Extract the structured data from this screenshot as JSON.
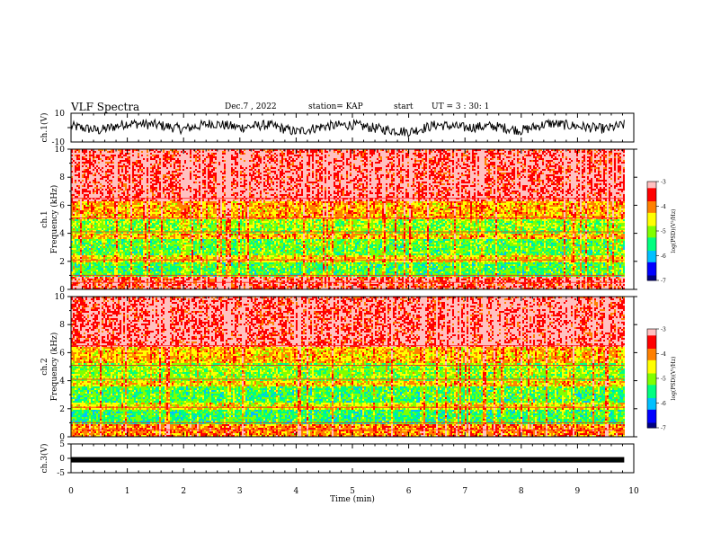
{
  "header": {
    "title": "VLF Spectra",
    "date": "Dec.7 , 2022",
    "station": "station= KAP",
    "start_label": "start",
    "start_ut": "UT =  3 : 30: 1"
  },
  "chart_data": [
    {
      "type": "line",
      "panel": "ch1-waveform",
      "ylabel": "ch.1(V)",
      "ylim": [
        -10,
        10
      ],
      "yticks": [
        "10",
        "-10"
      ],
      "xlim": [
        0,
        10
      ],
      "color": "#000000",
      "description_values": {
        "x": [
          0,
          0.5,
          1.0,
          1.5,
          2.0,
          2.5,
          3.0,
          3.5,
          4.0,
          4.5,
          5.0,
          5.5,
          6.0,
          6.5,
          7.0,
          7.5,
          8.0,
          8.5,
          9.0,
          9.5,
          9.83
        ],
        "y": [
          1,
          -2,
          3,
          2,
          -1,
          3,
          0,
          2,
          -3,
          1,
          2,
          -1,
          -3,
          2,
          0,
          1,
          -2,
          3,
          1,
          -1,
          2
        ]
      }
    },
    {
      "type": "heatmap",
      "panel": "ch1-spectrogram",
      "ylabel": "ch.1 Frequency (kHz)",
      "ylim": [
        0,
        10
      ],
      "yticks": [
        "0",
        "2",
        "4",
        "6",
        "8",
        "10"
      ],
      "xlim": [
        0,
        10
      ],
      "time_extent_min": 9.83,
      "dominant_levels": {
        "0-1 kHz": -3.5,
        "1-2 kHz": -5.3,
        "2-2.5 kHz": -4.5,
        "2.5-3.7 kHz": -5.2,
        "3.7-4.1 kHz": -4.3,
        "4.1-5.1 kHz": -5.0,
        "5.1-6.3 kHz": -4.2,
        "6.3-10 kHz": -3.3
      },
      "colorbar": {
        "label": "log(PSD)(V²/Hz)",
        "range": [
          -7,
          -3
        ],
        "ticks": [
          "-3",
          "-4",
          "-5",
          "-6",
          "-7"
        ]
      }
    },
    {
      "type": "heatmap",
      "panel": "ch2-spectrogram",
      "ylabel": "ch.2 Frequency (kHz)",
      "ylim": [
        0,
        10
      ],
      "yticks": [
        "0",
        "2",
        "4",
        "6",
        "8",
        "10"
      ],
      "xlim": [
        0,
        10
      ],
      "time_extent_min": 9.83,
      "dominant_levels": {
        "0-1 kHz": -4.0,
        "1-2 kHz": -5.4,
        "2-2.5 kHz": -4.6,
        "2.5-3.6 kHz": -5.3,
        "3.6-4.1 kHz": -4.4,
        "4.1-5.3 kHz": -5.0,
        "5.3-6.5 kHz": -4.3,
        "6.5-10 kHz": -3.3
      },
      "colorbar": {
        "label": "log(PSD)(V²/Hz)",
        "range": [
          -7,
          -3
        ],
        "ticks": [
          "-3",
          "-4",
          "-5",
          "-6",
          "-7"
        ]
      }
    },
    {
      "type": "line",
      "panel": "ch3-waveform",
      "ylabel": "ch.3(V)",
      "ylim": [
        -5,
        5
      ],
      "yticks": [
        "5",
        "0",
        "-5"
      ],
      "xlim": [
        0,
        10
      ],
      "constant_value": -0.5,
      "color": "#000000"
    },
    {
      "panel": "time-axis",
      "xlabel": "Time (min)",
      "xticks": [
        "0",
        "1",
        "2",
        "3",
        "4",
        "5",
        "6",
        "7",
        "8",
        "9",
        "10"
      ]
    }
  ],
  "colormap": [
    "#000080",
    "#0000ff",
    "#00c0ff",
    "#00ff80",
    "#80ff00",
    "#ffff00",
    "#ff8000",
    "#ff0000",
    "#ffc0c0"
  ]
}
